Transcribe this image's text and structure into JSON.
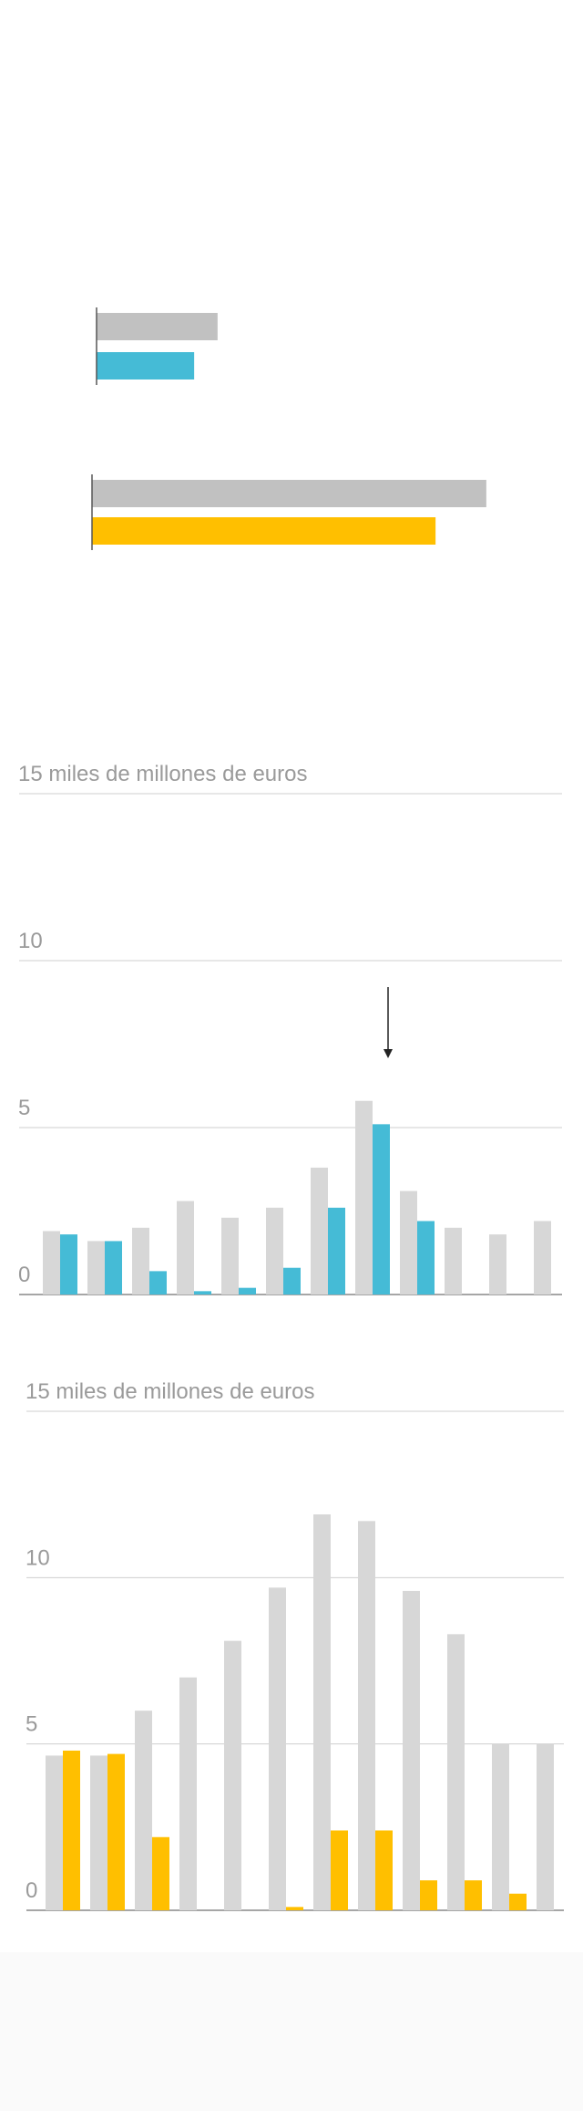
{
  "chart_data": [
    {
      "type": "hbar",
      "values": [
        93,
        75
      ],
      "colors": [
        "#c1c1c1",
        "#45bbd6"
      ]
    },
    {
      "type": "hbar",
      "values": [
        303,
        264
      ],
      "colors": [
        "#c1c1c1",
        "#ffbf00"
      ]
    },
    {
      "type": "bar",
      "categories": [
        null,
        null,
        null,
        null,
        null,
        null,
        null,
        null,
        null,
        null,
        null,
        null
      ],
      "series": [
        {
          "color": "#d7d7d7",
          "values": [
            1.9,
            1.6,
            2.0,
            2.8,
            2.3,
            2.6,
            3.8,
            5.8,
            3.1,
            2.0,
            1.8,
            2.2
          ]
        },
        {
          "color": "#45bbd6",
          "values": [
            1.8,
            1.6,
            0.7,
            0.1,
            0.2,
            0.8,
            2.6,
            5.1,
            2.2,
            null,
            null,
            null
          ]
        }
      ],
      "ylim": [
        0,
        15
      ],
      "yticks": [
        0,
        5,
        10,
        {
          "value": 15,
          "label": "15 miles de millones de euros"
        }
      ],
      "grid": true
    },
    {
      "type": "bar",
      "categories": [
        null,
        null,
        null,
        null,
        null,
        null,
        null,
        null,
        null,
        null,
        null,
        null
      ],
      "series": [
        {
          "color": "#d7d7d7",
          "values": [
            4.65,
            4.65,
            6.0,
            7.0,
            8.1,
            9.7,
            11.9,
            11.7,
            9.6,
            8.3,
            5.0,
            5.0
          ]
        },
        {
          "color": "#ffbf00",
          "values": [
            4.8,
            4.7,
            2.2,
            null,
            null,
            0.1,
            2.4,
            2.4,
            0.9,
            0.9,
            0.5,
            null
          ]
        }
      ],
      "ylim": [
        0,
        15
      ],
      "yticks": [
        0,
        5,
        10,
        {
          "value": 15,
          "label": "15 miles de millones de euros"
        }
      ],
      "grid": true
    }
  ]
}
